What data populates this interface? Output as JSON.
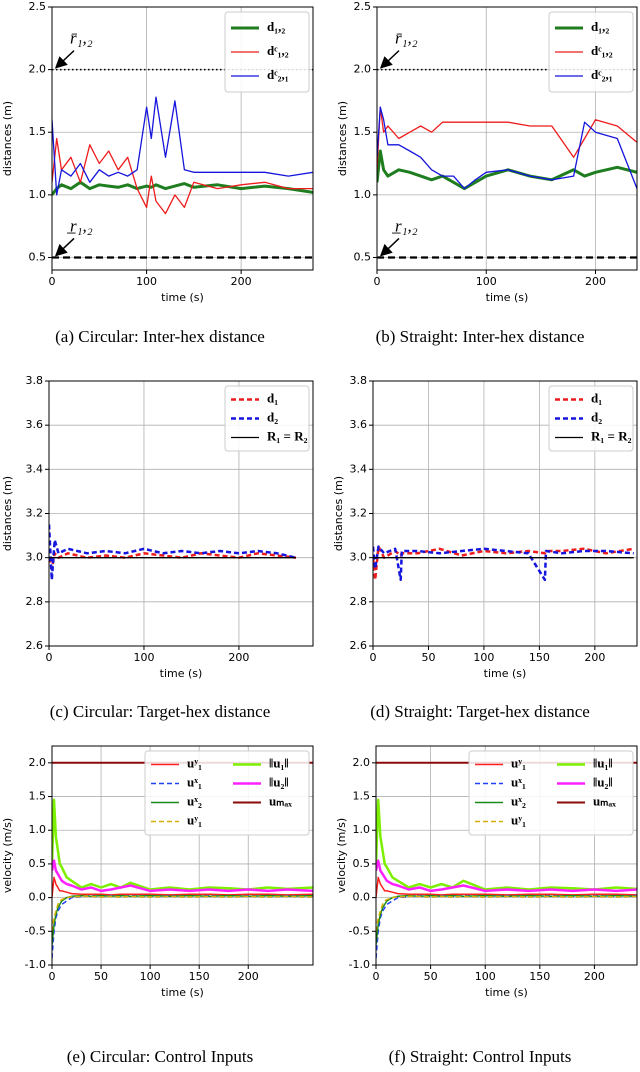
{
  "chart_data": [
    {
      "type": "line",
      "caption": "(a)  Circular: Inter-hex distance",
      "xlabel": "time (s)",
      "ylabel": "distances (m)",
      "xlim": [
        0,
        276
      ],
      "ylim": [
        0.4,
        2.5
      ],
      "xticks": [
        0,
        100,
        200
      ],
      "yticks": [
        0.5,
        {
          "value": 1,
          "label": "1.0"
        },
        1.5,
        {
          "value": 2,
          "label": "2.0"
        },
        2.5
      ],
      "grid": true,
      "legend": "upper right",
      "legend_columns": 1,
      "reference_lines": [
        {
          "label": "r̄₁,₂",
          "value": 2,
          "style": "dotted"
        },
        {
          "label": "r̲₁,₂",
          "value": 0.5,
          "style": "dashed"
        }
      ],
      "x": [
        0,
        5,
        10,
        20,
        30,
        40,
        50,
        60,
        70,
        80,
        90,
        100,
        105,
        110,
        120,
        130,
        140,
        150,
        175,
        200,
        225,
        250,
        276
      ],
      "series": [
        {
          "name": "d₁,₂",
          "color": "#1e7d1e",
          "width": 3,
          "values": [
            1.0,
            1.05,
            1.08,
            1.05,
            1.1,
            1.05,
            1.08,
            1.07,
            1.06,
            1.08,
            1.05,
            1.07,
            1.06,
            1.08,
            1.05,
            1.07,
            1.09,
            1.06,
            1.08,
            1.05,
            1.07,
            1.05,
            1.02
          ]
        },
        {
          "name": "dᶜ₁,₂",
          "color": "#ee1c1c",
          "width": 1.3,
          "values": [
            1.1,
            1.45,
            1.2,
            1.3,
            1.1,
            1.4,
            1.25,
            1.35,
            1.2,
            1.3,
            1.05,
            0.9,
            1.15,
            0.95,
            0.85,
            1.0,
            0.9,
            1.1,
            1.05,
            1.08,
            1.1,
            1.05,
            1.05
          ]
        },
        {
          "name": "dᶜ₂,₁",
          "color": "#1515dd",
          "width": 1.3,
          "values": [
            1.6,
            1.0,
            1.2,
            1.15,
            1.25,
            1.1,
            1.2,
            1.15,
            1.18,
            1.15,
            1.2,
            1.7,
            1.45,
            1.78,
            1.3,
            1.75,
            1.2,
            1.18,
            1.18,
            1.18,
            1.18,
            1.15,
            1.18
          ]
        }
      ]
    },
    {
      "type": "line",
      "caption": "(b)  Straight: Inter-hex distance",
      "xlabel": "time (s)",
      "ylabel": "distances (m)",
      "xlim": [
        0,
        238
      ],
      "ylim": [
        0.4,
        2.5
      ],
      "xticks": [
        0,
        100,
        200
      ],
      "yticks": [
        0.5,
        {
          "value": 1,
          "label": "1.0"
        },
        1.5,
        {
          "value": 2,
          "label": "2.0"
        },
        2.5
      ],
      "grid": true,
      "legend": "upper right",
      "legend_columns": 1,
      "reference_lines": [
        {
          "label": "r̄₁,₂",
          "value": 2,
          "style": "dotted"
        },
        {
          "label": "r̲₁,₂",
          "value": 0.5,
          "style": "dashed"
        }
      ],
      "x": [
        0,
        3,
        6,
        10,
        20,
        30,
        40,
        50,
        60,
        70,
        80,
        90,
        100,
        120,
        140,
        160,
        180,
        190,
        200,
        220,
        238
      ],
      "series": [
        {
          "name": "d₁,₂",
          "color": "#1e7d1e",
          "width": 3,
          "values": [
            1.1,
            1.35,
            1.2,
            1.15,
            1.2,
            1.18,
            1.15,
            1.12,
            1.15,
            1.1,
            1.05,
            1.1,
            1.15,
            1.2,
            1.15,
            1.12,
            1.2,
            1.15,
            1.18,
            1.22,
            1.18
          ]
        },
        {
          "name": "dᶜ₁,₂",
          "color": "#ee1c1c",
          "width": 1.3,
          "values": [
            1.2,
            1.7,
            1.5,
            1.55,
            1.45,
            1.5,
            1.55,
            1.5,
            1.58,
            1.58,
            1.58,
            1.58,
            1.58,
            1.58,
            1.55,
            1.55,
            1.3,
            1.45,
            1.6,
            1.55,
            1.42
          ]
        },
        {
          "name": "dᶜ₂,₁",
          "color": "#1515dd",
          "width": 1.3,
          "values": [
            1.3,
            1.7,
            1.6,
            1.4,
            1.4,
            1.35,
            1.3,
            1.2,
            1.15,
            1.15,
            1.05,
            1.12,
            1.18,
            1.2,
            1.15,
            1.12,
            1.15,
            1.58,
            1.5,
            1.45,
            1.05
          ]
        }
      ]
    },
    {
      "type": "line",
      "caption": "(c)  Circular: Target-hex distance",
      "xlabel": "time (s)",
      "ylabel": "distances (m)",
      "xlim": [
        0,
        278
      ],
      "ylim": [
        2.6,
        3.8
      ],
      "xticks": [
        0,
        100,
        200
      ],
      "yticks": [
        2.6,
        2.8,
        {
          "value": 3,
          "label": "3.0"
        },
        3.2,
        3.4,
        3.6,
        3.8
      ],
      "grid": true,
      "legend": "upper right",
      "legend_columns": 1,
      "x": [
        0,
        3,
        6,
        10,
        20,
        40,
        60,
        80,
        100,
        120,
        140,
        160,
        180,
        200,
        220,
        240,
        260
      ],
      "series": [
        {
          "name": "d₁",
          "color": "#ee1c1c",
          "width": 2.5,
          "dash": true,
          "values": [
            3.0,
            2.95,
            3.02,
            3.0,
            3.02,
            3.0,
            3.01,
            3.0,
            3.02,
            3.01,
            3.0,
            3.02,
            3.01,
            3.0,
            3.02,
            3.01,
            3.0
          ]
        },
        {
          "name": "d₂",
          "color": "#1515dd",
          "width": 2.5,
          "dash": true,
          "values": [
            3.15,
            2.9,
            3.08,
            3.02,
            3.04,
            3.02,
            3.03,
            3.02,
            3.04,
            3.02,
            3.03,
            3.02,
            3.03,
            3.02,
            3.03,
            3.02,
            3.0
          ]
        },
        {
          "name": "R₁ = R₂",
          "color": "#000000",
          "width": 1.3,
          "values": [
            3,
            3,
            3,
            3,
            3,
            3,
            3,
            3,
            3,
            3,
            3,
            3,
            3,
            3,
            3,
            3,
            3
          ]
        }
      ]
    },
    {
      "type": "line",
      "caption": "(d)  Straight: Target-hex distance",
      "xlabel": "time (s)",
      "ylabel": "distances (m)",
      "xlim": [
        0,
        238
      ],
      "ylim": [
        2.6,
        3.8
      ],
      "xticks": [
        0,
        50,
        100,
        150,
        200
      ],
      "yticks": [
        2.6,
        2.8,
        {
          "value": 3,
          "label": "3.0"
        },
        3.2,
        3.4,
        3.6,
        3.8
      ],
      "grid": true,
      "legend": "upper right",
      "legend_columns": 1,
      "x": [
        0,
        2,
        5,
        10,
        20,
        25,
        26,
        40,
        60,
        80,
        100,
        120,
        140,
        155,
        156,
        170,
        190,
        210,
        235
      ],
      "series": [
        {
          "name": "d₁",
          "color": "#ee1c1c",
          "width": 2.5,
          "dash": true,
          "values": [
            3.0,
            2.9,
            3.05,
            3.0,
            3.03,
            3.01,
            3.02,
            3.02,
            3.04,
            3.01,
            3.03,
            3.02,
            3.03,
            3.02,
            3.03,
            3.03,
            3.04,
            3.02,
            3.04
          ]
        },
        {
          "name": "d₂",
          "color": "#1515dd",
          "width": 2.5,
          "dash": true,
          "values": [
            3.05,
            2.95,
            3.05,
            3.02,
            3.04,
            2.9,
            3.03,
            3.03,
            3.02,
            3.03,
            3.04,
            3.03,
            3.02,
            2.9,
            3.03,
            3.02,
            3.03,
            3.03,
            3.02
          ]
        },
        {
          "name": "R₁ = R₂",
          "color": "#000000",
          "width": 1.3,
          "values": [
            3,
            3,
            3,
            3,
            3,
            3,
            3,
            3,
            3,
            3,
            3,
            3,
            3,
            3,
            3,
            3,
            3,
            3,
            3
          ]
        }
      ]
    },
    {
      "type": "line",
      "caption": "(e)  Circular: Control Inputs",
      "xlabel": "time (s)",
      "ylabel": "velocity (m/s)",
      "xlim": [
        0,
        266
      ],
      "ylim": [
        -1,
        2.25
      ],
      "xticks": [
        0,
        50,
        100,
        150,
        200
      ],
      "yticks": [
        {
          "value": -1,
          "label": "-1.0"
        },
        -0.5,
        {
          "value": 0,
          "label": "0.0"
        },
        0.5,
        {
          "value": 1,
          "label": "1.0"
        },
        1.5,
        {
          "value": 2,
          "label": "2.0"
        }
      ],
      "grid": true,
      "legend": "upper right",
      "legend_columns": 2,
      "x": [
        0,
        2,
        4,
        6,
        8,
        10,
        15,
        20,
        30,
        40,
        50,
        60,
        70,
        80,
        100,
        120,
        140,
        160,
        180,
        200,
        220,
        240,
        266
      ],
      "series": [
        {
          "name": "uʸ₁",
          "color": "#ff2020",
          "width": 1.5,
          "values": [
            0,
            0.3,
            0.2,
            0.15,
            0.1,
            0.1,
            0.08,
            0.06,
            0.05,
            0.05,
            0.05,
            0.04,
            0.05,
            0.05,
            0.05,
            0.04,
            0.05,
            0.05,
            0.04,
            0.05,
            0.05,
            0.04,
            0.05
          ]
        },
        {
          "name": "uˣ₁",
          "color": "#2040ff",
          "width": 1.5,
          "dash": true,
          "values": [
            -0.9,
            -0.5,
            -0.3,
            -0.2,
            -0.15,
            -0.1,
            -0.05,
            0,
            0.02,
            0.03,
            0.02,
            0.03,
            0.02,
            0.03,
            0.02,
            0.03,
            0.02,
            0.03,
            0.02,
            0.03,
            0.02,
            0.03,
            0.02
          ]
        },
        {
          "name": "uˣ₂",
          "color": "#1a8a1a",
          "width": 1.5,
          "values": [
            -0.7,
            -0.4,
            -0.25,
            -0.15,
            -0.1,
            -0.05,
            0,
            0.02,
            0.03,
            0.02,
            0.03,
            0.02,
            0.03,
            0.02,
            0.03,
            0.02,
            0.03,
            0.02,
            0.03,
            0.02,
            0.03,
            0.02,
            0.03
          ]
        },
        {
          "name": "uʸ₁",
          "color": "#d4b000",
          "width": 1.5,
          "dash": true,
          "values": [
            -0.5,
            -0.3,
            -0.2,
            -0.1,
            -0.05,
            -0.03,
            0,
            0.01,
            0.02,
            0.02,
            0.01,
            0.02,
            0.01,
            0.02,
            0.01,
            0.02,
            0.01,
            0.02,
            0.01,
            0.02,
            0.01,
            0.02,
            0.01
          ]
        },
        {
          "name": "‖u₁‖",
          "color": "#7cf000",
          "width": 2.5,
          "values": [
            0.5,
            1.45,
            0.9,
            0.7,
            0.5,
            0.45,
            0.3,
            0.25,
            0.15,
            0.2,
            0.15,
            0.2,
            0.15,
            0.22,
            0.12,
            0.15,
            0.12,
            0.15,
            0.14,
            0.12,
            0.15,
            0.13,
            0.15
          ]
        },
        {
          "name": "‖u₂‖",
          "color": "#ff20ff",
          "width": 2.5,
          "values": [
            0.4,
            0.55,
            0.4,
            0.35,
            0.3,
            0.25,
            0.2,
            0.18,
            0.12,
            0.15,
            0.1,
            0.12,
            0.15,
            0.18,
            0.1,
            0.12,
            0.1,
            0.12,
            0.1,
            0.12,
            0.1,
            0.12,
            0.1
          ]
        },
        {
          "name": "uₘₐₓ",
          "color": "#8b0a0a",
          "width": 2,
          "values": [
            2,
            2,
            2,
            2,
            2,
            2,
            2,
            2,
            2,
            2,
            2,
            2,
            2,
            2,
            2,
            2,
            2,
            2,
            2,
            2,
            2,
            2,
            2
          ]
        }
      ]
    },
    {
      "type": "line",
      "caption": "(f)  Straight: Control Inputs",
      "xlabel": "time (s)",
      "ylabel": "velocity (m/s)",
      "xlim": [
        0,
        239
      ],
      "ylim": [
        -1,
        2.25
      ],
      "xticks": [
        0,
        50,
        100,
        150,
        200
      ],
      "yticks": [
        {
          "value": -1,
          "label": "-1.0"
        },
        -0.5,
        {
          "value": 0,
          "label": "0.0"
        },
        0.5,
        {
          "value": 1,
          "label": "1.0"
        },
        1.5,
        {
          "value": 2,
          "label": "2.0"
        }
      ],
      "grid": true,
      "legend": "upper right",
      "legend_columns": 2,
      "x": [
        0,
        2,
        4,
        6,
        8,
        10,
        15,
        20,
        30,
        40,
        50,
        60,
        70,
        80,
        100,
        120,
        140,
        160,
        180,
        200,
        220,
        239
      ],
      "series": [
        {
          "name": "uʸ₁",
          "color": "#ff2020",
          "width": 1.5,
          "values": [
            0,
            0.3,
            0.2,
            0.15,
            0.1,
            0.1,
            0.08,
            0.06,
            0.05,
            0.05,
            0.05,
            0.04,
            0.05,
            0.05,
            0.05,
            0.04,
            0.05,
            0.05,
            0.04,
            0.05,
            0.05,
            0.04
          ]
        },
        {
          "name": "uˣ₁",
          "color": "#2040ff",
          "width": 1.5,
          "dash": true,
          "values": [
            -0.9,
            -0.5,
            -0.3,
            -0.2,
            -0.15,
            -0.1,
            -0.05,
            0,
            0.02,
            0.03,
            0.02,
            0.03,
            0.02,
            0.03,
            0.02,
            0.03,
            0.02,
            0.03,
            0.02,
            0.03,
            0.02,
            0.03
          ]
        },
        {
          "name": "uˣ₂",
          "color": "#1a8a1a",
          "width": 1.5,
          "values": [
            -0.7,
            -0.4,
            -0.25,
            -0.15,
            -0.1,
            -0.05,
            0,
            0.02,
            0.03,
            0.02,
            0.03,
            0.02,
            0.03,
            0.02,
            0.03,
            0.02,
            0.03,
            0.02,
            0.03,
            0.02,
            0.03,
            0.02
          ]
        },
        {
          "name": "uʸ₁",
          "color": "#d4b000",
          "width": 1.5,
          "dash": true,
          "values": [
            -0.5,
            -0.3,
            -0.2,
            -0.1,
            -0.05,
            -0.03,
            0,
            0.01,
            0.02,
            0.02,
            0.01,
            0.02,
            0.01,
            0.02,
            0.01,
            0.02,
            0.01,
            0.02,
            0.01,
            0.02,
            0.01,
            0.02
          ]
        },
        {
          "name": "‖u₁‖",
          "color": "#7cf000",
          "width": 2.5,
          "values": [
            0.5,
            1.45,
            0.9,
            0.7,
            0.5,
            0.45,
            0.3,
            0.25,
            0.15,
            0.2,
            0.15,
            0.2,
            0.15,
            0.25,
            0.12,
            0.15,
            0.12,
            0.15,
            0.14,
            0.12,
            0.15,
            0.13
          ]
        },
        {
          "name": "‖u₂‖",
          "color": "#ff20ff",
          "width": 2.5,
          "values": [
            0.4,
            0.55,
            0.4,
            0.35,
            0.3,
            0.25,
            0.2,
            0.18,
            0.12,
            0.15,
            0.1,
            0.12,
            0.15,
            0.18,
            0.1,
            0.12,
            0.1,
            0.12,
            0.1,
            0.12,
            0.1,
            0.12
          ]
        },
        {
          "name": "uₘₐₓ",
          "color": "#8b0a0a",
          "width": 2,
          "values": [
            2,
            2,
            2,
            2,
            2,
            2,
            2,
            2,
            2,
            2,
            2,
            2,
            2,
            2,
            2,
            2,
            2,
            2,
            2,
            2,
            2,
            2
          ]
        }
      ]
    }
  ]
}
